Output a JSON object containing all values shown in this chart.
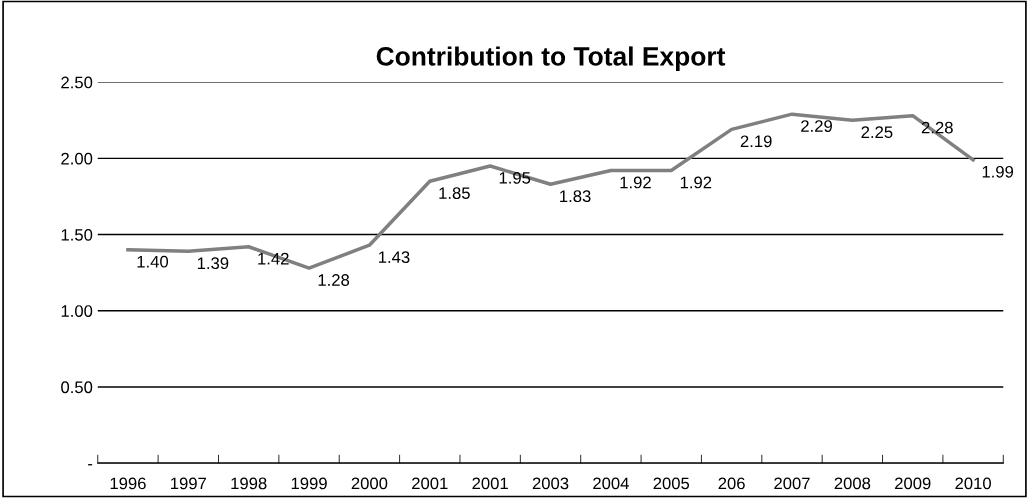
{
  "chart_data": {
    "type": "line",
    "title": "Contribution to Total Export",
    "categories": [
      "1996",
      "1997",
      "1998",
      "1999",
      "2000",
      "2001",
      "2001",
      "2003",
      "2004",
      "2005",
      "206",
      "2007",
      "2008",
      "2009",
      "2010"
    ],
    "values": [
      1.4,
      1.39,
      1.42,
      1.28,
      1.43,
      1.85,
      1.95,
      1.83,
      1.92,
      1.92,
      2.19,
      2.29,
      2.25,
      2.28,
      1.99
    ],
    "color": "#808080",
    "ylim": [
      0,
      2.5
    ],
    "yticks": [
      {
        "value": 0,
        "label": "-"
      },
      {
        "value": 0.5,
        "label": "0.50"
      },
      {
        "value": 1.0,
        "label": "1.00"
      },
      {
        "value": 1.5,
        "label": "1.50"
      },
      {
        "value": 2.0,
        "label": "2.00"
      },
      {
        "value": 2.5,
        "label": "2.50"
      }
    ],
    "value_labels": [
      "1.40",
      "1.39",
      "1.42",
      "1.28",
      "1.43",
      "1.85",
      "1.95",
      "1.83",
      "1.92",
      "1.92",
      "2.19",
      "2.29",
      "2.25",
      "2.28",
      "1.99"
    ],
    "grid": "y",
    "marker": "none",
    "line_style": "solid"
  }
}
